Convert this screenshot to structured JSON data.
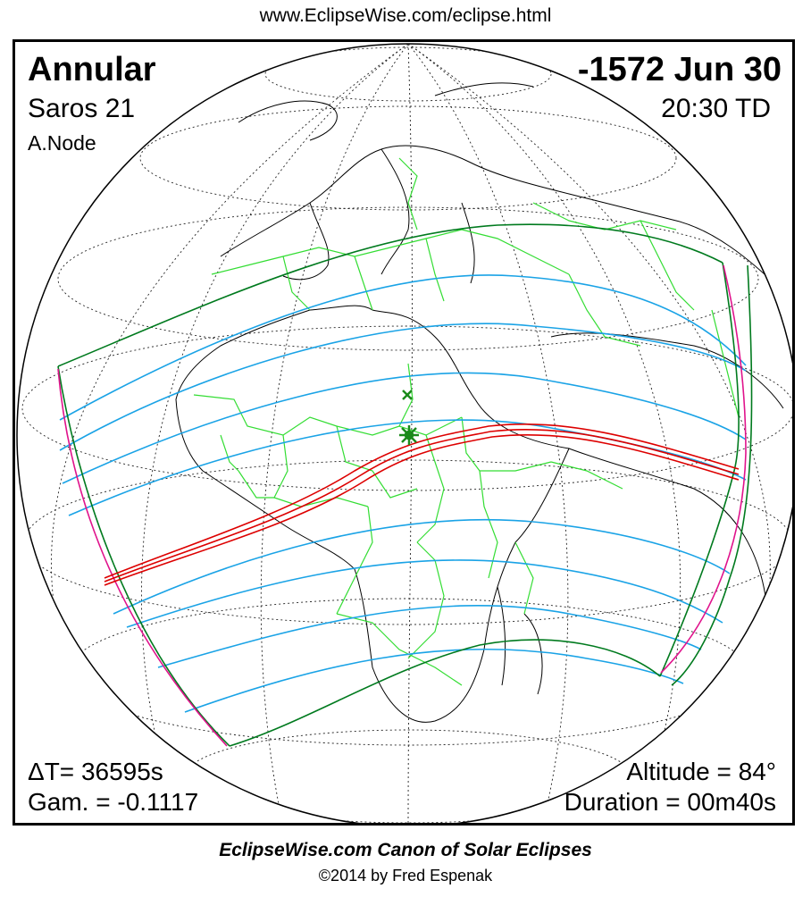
{
  "header": {
    "url": "www.EclipseWise.com/eclipse.html"
  },
  "eclipse": {
    "type": "Annular",
    "date": "-1572 Jun 30",
    "saros": "Saros  21",
    "time": "20:30 TD",
    "node": "A.Node",
    "delta_t": "ΔT=  36595s",
    "gamma": "Gam. = -0.1117",
    "altitude": "Altitude = 84°",
    "duration": "Duration = 00m40s"
  },
  "footer": {
    "canon": "EclipseWise.com Canon of Solar Eclipses",
    "copyright": "©2014 by Fred Espenak"
  },
  "colors": {
    "central_path": "#dd0000",
    "penumbral_limits": "#007a1e",
    "magnitude_curves": "#1aa3e6",
    "borders": "#33dd33",
    "rise_set_curves": "#e0138c"
  },
  "markers": {
    "greatest_eclipse": "asterisk-icon",
    "subsolar_point": "x-mark-icon"
  }
}
